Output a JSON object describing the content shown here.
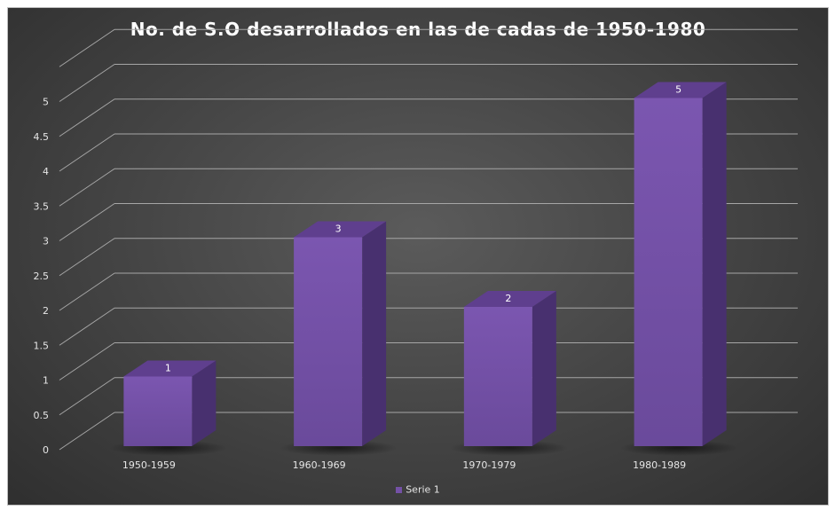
{
  "chart_data": {
    "type": "bar",
    "title": "No. de S.O desarrollados en las de cadas de 1950-1980",
    "categories": [
      "1950-1959",
      "1960-1969",
      "1970-1979",
      "1980-1989"
    ],
    "series": [
      {
        "name": "Serie 1",
        "values": [
          1,
          3,
          2,
          5
        ]
      }
    ],
    "ylim": [
      0,
      5.5
    ],
    "yticks": [
      "0",
      "0.5",
      "1",
      "1.5",
      "2",
      "2.5",
      "3",
      "3.5",
      "4",
      "4.5",
      "5"
    ],
    "data_labels": [
      "1",
      "3",
      "2",
      "5"
    ],
    "grid": true,
    "three_d": true,
    "legend_position": "bottom",
    "colors": {
      "bar_front": "#7451a6",
      "bar_top": "#5f3f8e",
      "bar_side": "#48306f",
      "gridline": "#a6a6a6",
      "text": "#ffffff"
    }
  }
}
